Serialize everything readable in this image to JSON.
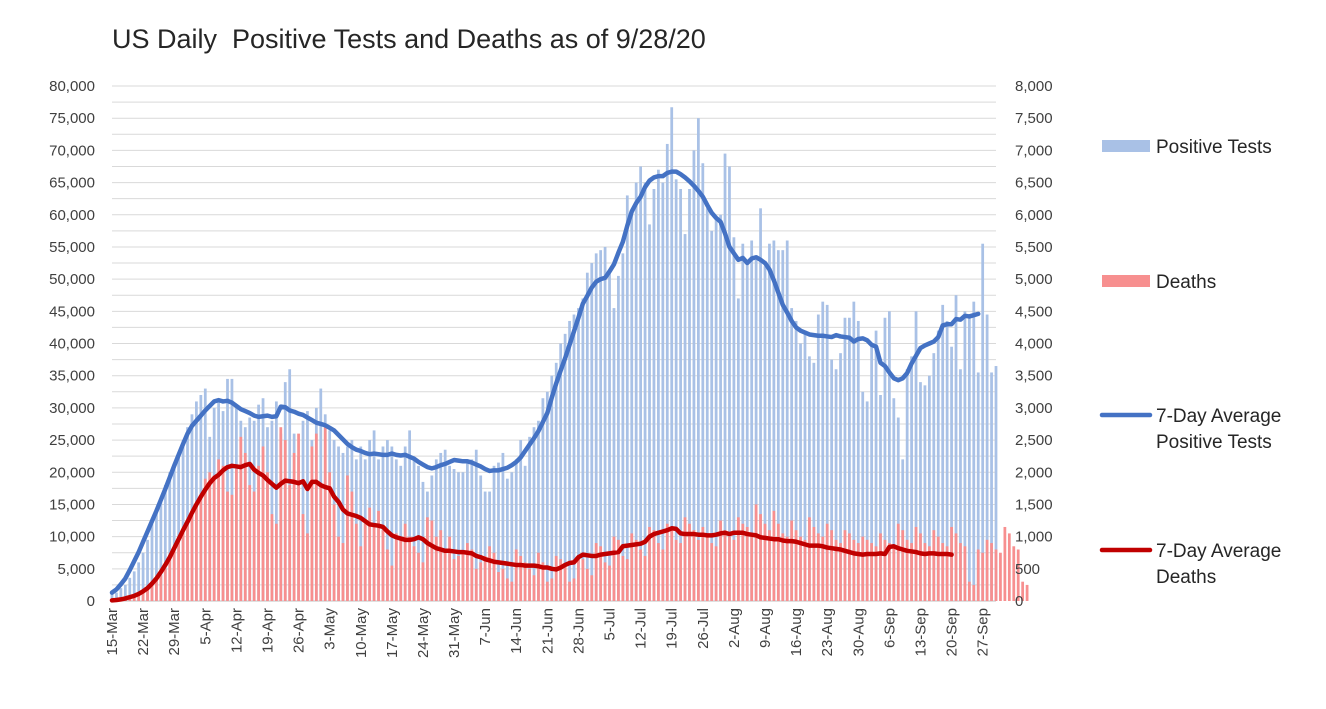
{
  "chart_data": {
    "type": "bar",
    "title": "US Daily  Positive Tests and Deaths as of 9/28/20",
    "start_date": "2020-03-15",
    "x_tick_labels": [
      "15-Mar",
      "22-Mar",
      "29-Mar",
      "5-Apr",
      "12-Apr",
      "19-Apr",
      "26-Apr",
      "3-May",
      "10-May",
      "17-May",
      "24-May",
      "31-May",
      "7-Jun",
      "14-Jun",
      "21-Jun",
      "28-Jun",
      "5-Jul",
      "12-Jul",
      "19-Jul",
      "26-Jul",
      "2-Aug",
      "9-Aug",
      "16-Aug",
      "23-Aug",
      "30-Aug",
      "6-Sep",
      "13-Sep",
      "20-Sep",
      "27-Sep"
    ],
    "y_left": {
      "ticks": [
        "0",
        "5,000",
        "10,000",
        "15,000",
        "20,000",
        "25,000",
        "30,000",
        "35,000",
        "40,000",
        "45,000",
        "50,000",
        "55,000",
        "60,000",
        "65,000",
        "70,000",
        "75,000",
        "80,000"
      ],
      "lim": [
        0,
        80000
      ]
    },
    "y_right": {
      "ticks": [
        "0",
        "500",
        "1,000",
        "1,500",
        "2,000",
        "2,500",
        "3,000",
        "3,500",
        "4,000",
        "4,500",
        "5,000",
        "5,500",
        "6,000",
        "6,500",
        "7,000",
        "7,500",
        "8,000"
      ],
      "lim": [
        0,
        8000
      ]
    },
    "grid": "horizontal",
    "legend_position": "right",
    "series": [
      {
        "name": "Positive Tests",
        "kind": "bar",
        "axis": "left",
        "color": "#a9c1e6",
        "values": [
          1000,
          1300,
          2000,
          2500,
          3600,
          4600,
          6000,
          7500,
          9500,
          12000,
          14000,
          16000,
          18000,
          20000,
          21000,
          23000,
          25000,
          27000,
          29000,
          31000,
          32000,
          33000,
          25500,
          30000,
          31000,
          29500,
          34500,
          34500,
          30000,
          28000,
          27000,
          28500,
          28000,
          30500,
          31500,
          27000,
          28000,
          31000,
          26000,
          34000,
          36000,
          26000,
          22500,
          28000,
          29500,
          25000,
          30000,
          33000,
          29000,
          26500,
          25000,
          24000,
          23000,
          24000,
          25000,
          22000,
          24000,
          22000,
          25000,
          26500,
          22000,
          24000,
          25000,
          24000,
          22000,
          21000,
          24000,
          26500,
          22000,
          21000,
          18500,
          17000,
          19500,
          22000,
          23000,
          23500,
          21000,
          20500,
          20000,
          20000,
          21500,
          22000,
          23500,
          19500,
          17000,
          17000,
          21000,
          21500,
          23000,
          19000,
          20000,
          22000,
          25000,
          21000,
          25500,
          27000,
          28000,
          31500,
          32500,
          35000,
          37000,
          40000,
          41500,
          43500,
          44500,
          45500,
          47000,
          51000,
          52500,
          54000,
          54500,
          55000,
          51500,
          45500,
          50500,
          54000,
          63000,
          60500,
          65000,
          67500,
          65000,
          58500,
          64000,
          67000,
          65000,
          71000,
          76700,
          65500,
          64000,
          57000,
          64000,
          70000,
          75000,
          68000,
          61000,
          57500,
          59500,
          60000,
          69500,
          67500,
          56500,
          47000,
          55500,
          52500,
          56000,
          53000,
          61000,
          52000,
          55500,
          56000,
          54500,
          54500,
          56000,
          45500,
          43500,
          40000,
          42000,
          38000,
          37000,
          44500,
          46500,
          46000,
          37500,
          36000,
          38500,
          44000,
          44000,
          46500,
          43500,
          32500,
          31000,
          40000,
          42000,
          32000,
          44000,
          45000,
          31500,
          28500,
          22000,
          36000,
          38000,
          45000,
          34000,
          33500,
          35000,
          38500,
          42000,
          46000,
          43500,
          39500,
          47500,
          36000,
          45000,
          44500,
          46500,
          35500,
          55500,
          44500,
          35500,
          36500
        ]
      },
      {
        "name": "Deaths",
        "kind": "bar",
        "axis": "right",
        "color": "#f78f8f",
        "values": [
          20,
          25,
          35,
          45,
          70,
          90,
          130,
          170,
          210,
          260,
          320,
          400,
          500,
          650,
          800,
          950,
          1100,
          1250,
          1350,
          1500,
          1650,
          1900,
          2000,
          1950,
          2200,
          2100,
          1700,
          1650,
          2050,
          2550,
          2300,
          1800,
          1700,
          2100,
          2400,
          2000,
          1350,
          1200,
          2700,
          2500,
          1800,
          2300,
          2600,
          1350,
          1050,
          2400,
          2600,
          1800,
          2750,
          2000,
          1500,
          1000,
          900,
          1950,
          1700,
          1200,
          850,
          1200,
          1450,
          1150,
          1400,
          1100,
          800,
          550,
          1050,
          1000,
          1200,
          1000,
          850,
          750,
          600,
          1300,
          1250,
          1000,
          1100,
          800,
          1000,
          650,
          700,
          750,
          900,
          800,
          500,
          600,
          700,
          850,
          750,
          450,
          500,
          350,
          300,
          800,
          700,
          600,
          500,
          400,
          750,
          600,
          300,
          350,
          700,
          650,
          550,
          300,
          350,
          700,
          650,
          500,
          400,
          900,
          850,
          600,
          550,
          1000,
          950,
          700,
          650,
          1050,
          950,
          800,
          700,
          1150,
          1100,
          900,
          800,
          1200,
          1100,
          950,
          900,
          1300,
          1200,
          1100,
          950,
          1150,
          1050,
          900,
          850,
          1250,
          1100,
          1000,
          950,
          1300,
          1200,
          1150,
          1050,
          1500,
          1350,
          1200,
          1100,
          1400,
          1200,
          1050,
          1000,
          1250,
          1100,
          1000,
          950,
          1300,
          1150,
          1050,
          1000,
          1200,
          1100,
          950,
          900,
          1100,
          1050,
          950,
          900,
          1000,
          950,
          900,
          850,
          1050,
          950,
          900,
          850,
          1200,
          1100,
          950,
          900,
          1150,
          1050,
          900,
          850,
          1100,
          1000,
          900,
          850,
          1150,
          1050,
          900,
          850,
          300,
          250,
          800,
          750,
          950,
          900,
          800,
          750,
          1150,
          1050,
          850,
          800,
          300,
          250
        ]
      },
      {
        "name": "7-Day Average Positive Tests",
        "kind": "line",
        "axis": "left",
        "color": "#4472c4",
        "values": [
          1300,
          1800,
          2600,
          3500,
          4800,
          6200,
          7600,
          9200,
          10800,
          12400,
          14000,
          15700,
          17400,
          19200,
          21000,
          22700,
          24400,
          26000,
          27200,
          28000,
          28800,
          29600,
          30300,
          31000,
          31200,
          31000,
          31100,
          30800,
          30300,
          29800,
          29500,
          29200,
          28800,
          28600,
          28700,
          28800,
          28600,
          28700,
          30200,
          30100,
          29600,
          29400,
          29100,
          28900,
          28500,
          28100,
          27700,
          27500,
          27300,
          26900,
          26500,
          25800,
          25100,
          24400,
          23900,
          23500,
          23300,
          23000,
          22800,
          22900,
          22800,
          22700,
          22700,
          22900,
          22700,
          22600,
          22700,
          22400,
          22100,
          21600,
          21200,
          20800,
          20600,
          20800,
          21100,
          21300,
          21600,
          21900,
          21800,
          21700,
          21700,
          21500,
          21200,
          20900,
          20500,
          20200,
          20300,
          20300,
          20500,
          20700,
          21100,
          21600,
          22300,
          23300,
          24300,
          25300,
          26400,
          27800,
          29200,
          31600,
          33800,
          35800,
          37700,
          39800,
          41900,
          44000,
          46200,
          47400,
          48700,
          49600,
          50000,
          50200,
          51200,
          52300,
          54100,
          55800,
          58300,
          60500,
          61800,
          62800,
          64300,
          65300,
          65800,
          66000,
          66000,
          66500,
          66700,
          66700,
          66300,
          65800,
          65200,
          64500,
          63700,
          62800,
          61500,
          60300,
          59500,
          58900,
          57100,
          55000,
          54000,
          53000,
          53300,
          52500,
          53200,
          53400,
          53000,
          52500,
          51500,
          49800,
          47900,
          46000,
          44800,
          43500,
          42500,
          42000,
          41700,
          41400,
          41300,
          41200,
          41200,
          41100,
          41000,
          41300,
          41100,
          41000,
          40900,
          40300,
          40700,
          40800,
          40500,
          39800,
          39500,
          37000,
          36500,
          35500,
          34600,
          34300,
          34600,
          35400,
          36900,
          38100,
          39300,
          39700,
          40000,
          40300,
          41000,
          42800,
          43000,
          43000,
          43800,
          43700,
          44300,
          44200,
          44400,
          44600
        ]
      },
      {
        "name": "7-Day Average Deaths",
        "kind": "line",
        "axis": "right",
        "color": "#c00000",
        "values": [
          10,
          15,
          25,
          40,
          60,
          80,
          110,
          150,
          200,
          270,
          350,
          450,
          560,
          680,
          820,
          960,
          1100,
          1230,
          1370,
          1500,
          1620,
          1730,
          1830,
          1910,
          1960,
          2030,
          2080,
          2100,
          2090,
          2080,
          2110,
          2130,
          2040,
          1990,
          1950,
          1880,
          1820,
          1760,
          1820,
          1870,
          1860,
          1850,
          1830,
          1860,
          1740,
          1850,
          1850,
          1800,
          1770,
          1750,
          1620,
          1540,
          1420,
          1360,
          1340,
          1320,
          1290,
          1240,
          1190,
          1180,
          1170,
          1150,
          1080,
          1020,
          990,
          970,
          950,
          950,
          960,
          990,
          960,
          900,
          860,
          820,
          800,
          780,
          780,
          770,
          760,
          760,
          750,
          740,
          700,
          680,
          650,
          630,
          610,
          600,
          590,
          580,
          570,
          560,
          560,
          550,
          550,
          550,
          540,
          520,
          520,
          500,
          490,
          520,
          560,
          590,
          600,
          680,
          720,
          710,
          700,
          700,
          720,
          730,
          740,
          750,
          760,
          850,
          860,
          870,
          880,
          890,
          920,
          1000,
          1040,
          1060,
          1080,
          1100,
          1130,
          1120,
          1050,
          1040,
          1040,
          1040,
          1030,
          1030,
          1020,
          1020,
          1030,
          1050,
          1060,
          1040,
          1060,
          1060,
          1060,
          1040,
          1030,
          1020,
          990,
          980,
          970,
          960,
          960,
          940,
          930,
          930,
          920,
          900,
          880,
          860,
          860,
          860,
          850,
          830,
          820,
          810,
          800,
          780,
          760,
          740,
          730,
          720,
          730,
          730,
          730,
          740,
          730,
          840,
          850,
          820,
          800,
          780,
          770,
          760,
          740,
          730,
          740,
          740,
          730,
          730,
          730,
          720
        ]
      }
    ]
  }
}
